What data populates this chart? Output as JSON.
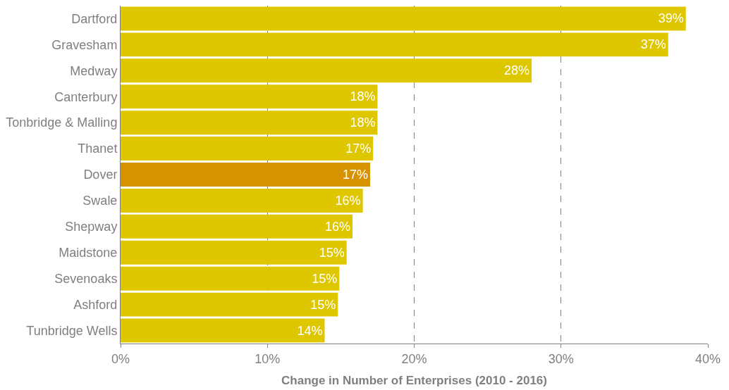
{
  "chart_data": {
    "type": "bar",
    "orientation": "horizontal",
    "xlabel": "Change in Number of Enterprises (2010 - 2016)",
    "categories": [
      "Dartford",
      "Gravesham",
      "Medway",
      "Canterbury",
      "Tonbridge & Malling",
      "Thanet",
      "Dover",
      "Swale",
      "Shepway",
      "Maidstone",
      "Sevenoaks",
      "Ashford",
      "Tunbridge Wells"
    ],
    "values": [
      38.5,
      37.3,
      28.0,
      17.5,
      17.5,
      17.2,
      17.0,
      16.5,
      15.8,
      15.4,
      14.9,
      14.8,
      13.9
    ],
    "value_labels": [
      "39%",
      "37%",
      "28%",
      "18%",
      "18%",
      "17%",
      "17%",
      "16%",
      "16%",
      "15%",
      "15%",
      "15%",
      "14%"
    ],
    "colors": [
      "#dfc700",
      "#dfc700",
      "#dfc700",
      "#dfc700",
      "#dfc700",
      "#dfc700",
      "#d79200",
      "#dfc700",
      "#dfc700",
      "#dfc700",
      "#dfc700",
      "#dfc700",
      "#dfc700"
    ],
    "xlim": [
      0,
      40
    ],
    "xticks": [
      {
        "value": 0,
        "label": "0%"
      },
      {
        "value": 10,
        "label": "10%"
      },
      {
        "value": 20,
        "label": "20%"
      },
      {
        "value": 30,
        "label": "30%"
      },
      {
        "value": 40,
        "label": "40%"
      }
    ],
    "grid": "x",
    "legend": false
  }
}
